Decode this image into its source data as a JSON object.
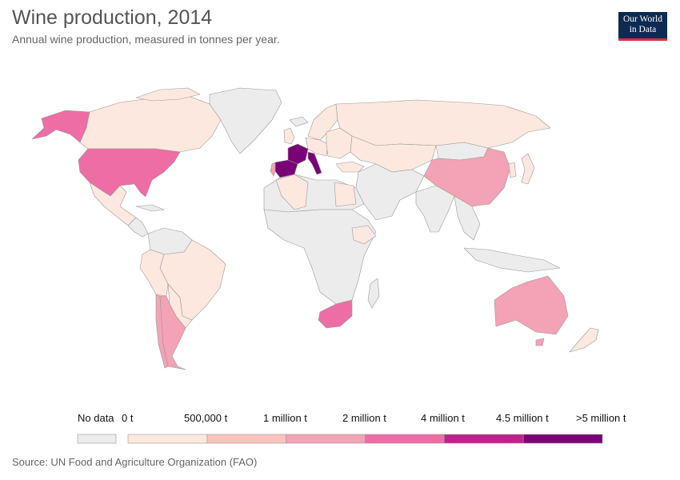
{
  "header": {
    "title": "Wine production, 2014",
    "subtitle": "Annual wine production, measured in tonnes per year."
  },
  "logo": {
    "line1": "Our World",
    "line2": "in Data"
  },
  "legend": {
    "no_data_label": "No data",
    "no_data_color": "#ececec",
    "tick_labels": [
      "0 t",
      "500,000 t",
      "1 million t",
      "2 million t",
      "4 million t",
      "4.5 million t",
      ">5 million t"
    ],
    "bins": [
      {
        "color": "#fde8df"
      },
      {
        "color": "#f9c3bd"
      },
      {
        "color": "#f4a2b5"
      },
      {
        "color": "#ee6da4"
      },
      {
        "color": "#c01f8c"
      },
      {
        "color": "#7a0177"
      }
    ]
  },
  "source": "Source: UN Food and Agriculture Organization (FAO)",
  "colors": {
    "no_data": "#ececec",
    "low": "#fde8df",
    "bin2": "#f9c3bd",
    "bin3": "#f4a2b5",
    "bin4": "#ee6da4",
    "bin5": "#c01f8c",
    "top": "#7a0177",
    "border": "#9a9a9a"
  }
}
